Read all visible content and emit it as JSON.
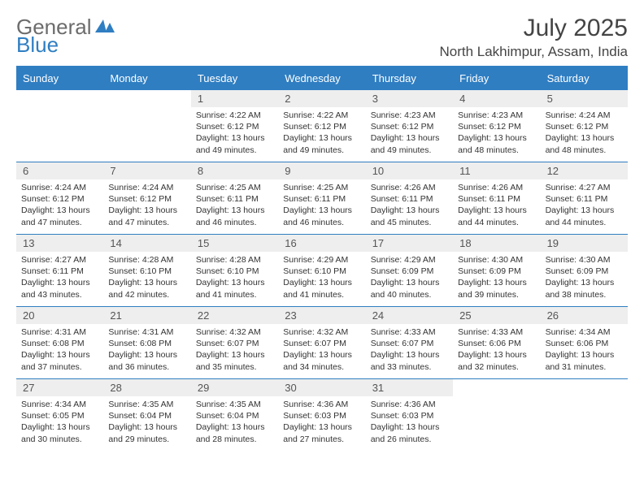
{
  "brand": {
    "part1": "General",
    "part2": "Blue"
  },
  "title": "July 2025",
  "location": "North Lakhimpur, Assam, India",
  "colors": {
    "header_bg": "#2f7ec2",
    "header_text": "#ffffff",
    "daynum_bg": "#eeeeee",
    "rule": "#2f7ec2",
    "body_text": "#333333",
    "logo_gray": "#6c6c6c",
    "logo_blue": "#2f7ec2",
    "page_bg": "#ffffff"
  },
  "typography": {
    "month_title_fontsize": 30,
    "location_fontsize": 17,
    "dayhead_fontsize": 13,
    "daynum_fontsize": 13,
    "info_fontsize": 10.5,
    "logo_fontsize": 26
  },
  "dayNames": [
    "Sunday",
    "Monday",
    "Tuesday",
    "Wednesday",
    "Thursday",
    "Friday",
    "Saturday"
  ],
  "weeks": [
    [
      {
        "n": "",
        "sr": "",
        "ss": "",
        "dl": ""
      },
      {
        "n": "",
        "sr": "",
        "ss": "",
        "dl": ""
      },
      {
        "n": "1",
        "sr": "Sunrise: 4:22 AM",
        "ss": "Sunset: 6:12 PM",
        "dl": "Daylight: 13 hours and 49 minutes."
      },
      {
        "n": "2",
        "sr": "Sunrise: 4:22 AM",
        "ss": "Sunset: 6:12 PM",
        "dl": "Daylight: 13 hours and 49 minutes."
      },
      {
        "n": "3",
        "sr": "Sunrise: 4:23 AM",
        "ss": "Sunset: 6:12 PM",
        "dl": "Daylight: 13 hours and 49 minutes."
      },
      {
        "n": "4",
        "sr": "Sunrise: 4:23 AM",
        "ss": "Sunset: 6:12 PM",
        "dl": "Daylight: 13 hours and 48 minutes."
      },
      {
        "n": "5",
        "sr": "Sunrise: 4:24 AM",
        "ss": "Sunset: 6:12 PM",
        "dl": "Daylight: 13 hours and 48 minutes."
      }
    ],
    [
      {
        "n": "6",
        "sr": "Sunrise: 4:24 AM",
        "ss": "Sunset: 6:12 PM",
        "dl": "Daylight: 13 hours and 47 minutes."
      },
      {
        "n": "7",
        "sr": "Sunrise: 4:24 AM",
        "ss": "Sunset: 6:12 PM",
        "dl": "Daylight: 13 hours and 47 minutes."
      },
      {
        "n": "8",
        "sr": "Sunrise: 4:25 AM",
        "ss": "Sunset: 6:11 PM",
        "dl": "Daylight: 13 hours and 46 minutes."
      },
      {
        "n": "9",
        "sr": "Sunrise: 4:25 AM",
        "ss": "Sunset: 6:11 PM",
        "dl": "Daylight: 13 hours and 46 minutes."
      },
      {
        "n": "10",
        "sr": "Sunrise: 4:26 AM",
        "ss": "Sunset: 6:11 PM",
        "dl": "Daylight: 13 hours and 45 minutes."
      },
      {
        "n": "11",
        "sr": "Sunrise: 4:26 AM",
        "ss": "Sunset: 6:11 PM",
        "dl": "Daylight: 13 hours and 44 minutes."
      },
      {
        "n": "12",
        "sr": "Sunrise: 4:27 AM",
        "ss": "Sunset: 6:11 PM",
        "dl": "Daylight: 13 hours and 44 minutes."
      }
    ],
    [
      {
        "n": "13",
        "sr": "Sunrise: 4:27 AM",
        "ss": "Sunset: 6:11 PM",
        "dl": "Daylight: 13 hours and 43 minutes."
      },
      {
        "n": "14",
        "sr": "Sunrise: 4:28 AM",
        "ss": "Sunset: 6:10 PM",
        "dl": "Daylight: 13 hours and 42 minutes."
      },
      {
        "n": "15",
        "sr": "Sunrise: 4:28 AM",
        "ss": "Sunset: 6:10 PM",
        "dl": "Daylight: 13 hours and 41 minutes."
      },
      {
        "n": "16",
        "sr": "Sunrise: 4:29 AM",
        "ss": "Sunset: 6:10 PM",
        "dl": "Daylight: 13 hours and 41 minutes."
      },
      {
        "n": "17",
        "sr": "Sunrise: 4:29 AM",
        "ss": "Sunset: 6:09 PM",
        "dl": "Daylight: 13 hours and 40 minutes."
      },
      {
        "n": "18",
        "sr": "Sunrise: 4:30 AM",
        "ss": "Sunset: 6:09 PM",
        "dl": "Daylight: 13 hours and 39 minutes."
      },
      {
        "n": "19",
        "sr": "Sunrise: 4:30 AM",
        "ss": "Sunset: 6:09 PM",
        "dl": "Daylight: 13 hours and 38 minutes."
      }
    ],
    [
      {
        "n": "20",
        "sr": "Sunrise: 4:31 AM",
        "ss": "Sunset: 6:08 PM",
        "dl": "Daylight: 13 hours and 37 minutes."
      },
      {
        "n": "21",
        "sr": "Sunrise: 4:31 AM",
        "ss": "Sunset: 6:08 PM",
        "dl": "Daylight: 13 hours and 36 minutes."
      },
      {
        "n": "22",
        "sr": "Sunrise: 4:32 AM",
        "ss": "Sunset: 6:07 PM",
        "dl": "Daylight: 13 hours and 35 minutes."
      },
      {
        "n": "23",
        "sr": "Sunrise: 4:32 AM",
        "ss": "Sunset: 6:07 PM",
        "dl": "Daylight: 13 hours and 34 minutes."
      },
      {
        "n": "24",
        "sr": "Sunrise: 4:33 AM",
        "ss": "Sunset: 6:07 PM",
        "dl": "Daylight: 13 hours and 33 minutes."
      },
      {
        "n": "25",
        "sr": "Sunrise: 4:33 AM",
        "ss": "Sunset: 6:06 PM",
        "dl": "Daylight: 13 hours and 32 minutes."
      },
      {
        "n": "26",
        "sr": "Sunrise: 4:34 AM",
        "ss": "Sunset: 6:06 PM",
        "dl": "Daylight: 13 hours and 31 minutes."
      }
    ],
    [
      {
        "n": "27",
        "sr": "Sunrise: 4:34 AM",
        "ss": "Sunset: 6:05 PM",
        "dl": "Daylight: 13 hours and 30 minutes."
      },
      {
        "n": "28",
        "sr": "Sunrise: 4:35 AM",
        "ss": "Sunset: 6:04 PM",
        "dl": "Daylight: 13 hours and 29 minutes."
      },
      {
        "n": "29",
        "sr": "Sunrise: 4:35 AM",
        "ss": "Sunset: 6:04 PM",
        "dl": "Daylight: 13 hours and 28 minutes."
      },
      {
        "n": "30",
        "sr": "Sunrise: 4:36 AM",
        "ss": "Sunset: 6:03 PM",
        "dl": "Daylight: 13 hours and 27 minutes."
      },
      {
        "n": "31",
        "sr": "Sunrise: 4:36 AM",
        "ss": "Sunset: 6:03 PM",
        "dl": "Daylight: 13 hours and 26 minutes."
      },
      {
        "n": "",
        "sr": "",
        "ss": "",
        "dl": ""
      },
      {
        "n": "",
        "sr": "",
        "ss": "",
        "dl": ""
      }
    ]
  ]
}
